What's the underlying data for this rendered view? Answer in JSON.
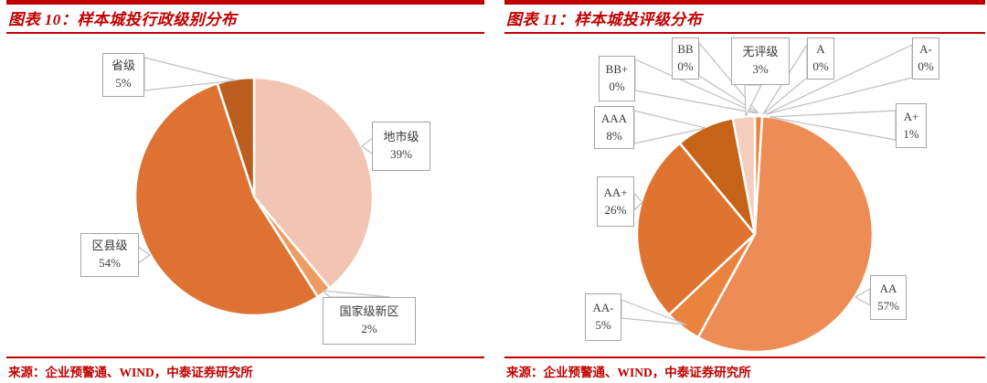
{
  "page": {
    "accent_color": "#C00000",
    "callout_border_color": "#A6A6A6",
    "leader_line_color": "#BFBFBF"
  },
  "panels": [
    {
      "figure_label": "图表 10",
      "title": "图表 10：样本城投行政级别分布",
      "source": "来源：企业预警通、WIND，中泰证券研究所"
    },
    {
      "figure_label": "图表 11",
      "title": "图表 11：样本城投评级分布",
      "source": "来源：企业预警通、WIND，中泰证券研究所"
    }
  ],
  "chart_data": [
    {
      "type": "pie",
      "title": "样本城投行政级别分布",
      "start_angle_deg": 0,
      "direction": "clockwise",
      "legend_position": "callout-labels",
      "slices": [
        {
          "label": "地市级",
          "value": 39,
          "pct_text": "39%",
          "color": "#F2C4B4"
        },
        {
          "label": "国家级新区",
          "value": 2,
          "pct_text": "2%",
          "color": "#EE9C61"
        },
        {
          "label": "区县级",
          "value": 54,
          "pct_text": "54%",
          "color": "#DE7233"
        },
        {
          "label": "省级",
          "value": 5,
          "pct_text": "5%",
          "color": "#BC5E20"
        }
      ]
    },
    {
      "type": "pie",
      "title": "样本城投评级分布",
      "start_angle_deg": 0,
      "direction": "clockwise",
      "legend_position": "callout-labels",
      "slices": [
        {
          "label": "A+",
          "value": 1,
          "pct_text": "1%",
          "color": "#E9833D"
        },
        {
          "label": "A",
          "value": 0,
          "pct_text": "0%",
          "color": "#E9833D"
        },
        {
          "label": "A-",
          "value": 0,
          "pct_text": "0%",
          "color": "#E9833D"
        },
        {
          "label": "BB+",
          "value": 0,
          "pct_text": "0%",
          "color": "#E9833D"
        },
        {
          "label": "BB",
          "value": 0,
          "pct_text": "0%",
          "color": "#E9833D"
        },
        {
          "label": "AA",
          "value": 57,
          "pct_text": "57%",
          "color": "#EE8C55"
        },
        {
          "label": "AA-",
          "value": 5,
          "pct_text": "5%",
          "color": "#E9833D"
        },
        {
          "label": "AA+",
          "value": 26,
          "pct_text": "26%",
          "color": "#DF7430"
        },
        {
          "label": "AAA",
          "value": 8,
          "pct_text": "8%",
          "color": "#C76319"
        },
        {
          "label": "无评级",
          "value": 3,
          "pct_text": "3%",
          "color": "#F5CDBD"
        }
      ]
    }
  ]
}
